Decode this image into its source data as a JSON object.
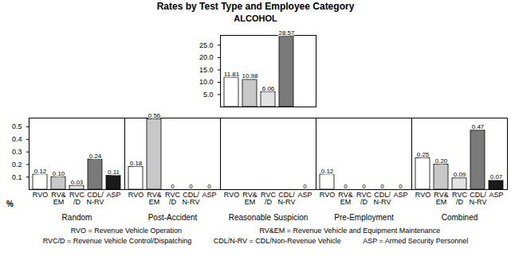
{
  "chart_data": [
    {
      "type": "bar",
      "title": "Rates by Test Type and Employee Category",
      "subtitle": "ALCOHOL",
      "categories": [
        "Random",
        "Post-Accident",
        "Reasonable Suspicion",
        "Pre-Employment",
        "Combined"
      ],
      "series": [
        {
          "name": "RVO",
          "color": "#ffffff",
          "values": [
            null,
            null,
            11.81,
            null,
            null
          ],
          "value_labels": [
            null,
            null,
            "11.81",
            null,
            null
          ]
        },
        {
          "name": "RV&\nEM",
          "color": "#c8c8c8",
          "values": [
            null,
            null,
            10.98,
            null,
            null
          ],
          "value_labels": [
            null,
            null,
            "10.98",
            null,
            null
          ]
        },
        {
          "name": "RVC\n/D",
          "color": "#e2e2e2",
          "values": [
            null,
            null,
            6.06,
            null,
            null
          ],
          "value_labels": [
            null,
            null,
            "6.06",
            null,
            null
          ]
        },
        {
          "name": "CDL/\nN-RV",
          "color": "#7a7a7a",
          "values": [
            null,
            null,
            28.57,
            null,
            null
          ],
          "value_labels": [
            null,
            null,
            "28.57",
            null,
            null
          ]
        },
        {
          "name": "ASP",
          "color": "#1a1a1a",
          "values": [
            null,
            null,
            null,
            null,
            null
          ],
          "value_labels": [
            null,
            null,
            null,
            null,
            null
          ]
        }
      ],
      "ylim": [
        0,
        29
      ],
      "yticks": [
        {
          "value": 5,
          "label": "5.0"
        },
        {
          "value": 10,
          "label": "10.0"
        },
        {
          "value": 15,
          "label": "15.0"
        },
        {
          "value": 20,
          "label": "20.0"
        },
        {
          "value": 25,
          "label": "25.0"
        }
      ],
      "data_labels": true,
      "tick_labels": "y"
    },
    {
      "type": "bar",
      "categories": [
        "Random",
        "Post-Accident",
        "Reasonable Suspicion",
        "Pre-Employment",
        "Combined"
      ],
      "series": [
        {
          "name": "RVO",
          "color": "#ffffff",
          "values": [
            0.12,
            0.18,
            null,
            0.12,
            0.25
          ],
          "value_labels": [
            "0.12",
            "0.18",
            null,
            "0.12",
            "0.25"
          ]
        },
        {
          "name": "RV&\nEM",
          "color": "#c8c8c8",
          "values": [
            0.1,
            0.56,
            null,
            0,
            0.2
          ],
          "value_labels": [
            "0.10",
            "0.56",
            null,
            "0",
            "0.20"
          ]
        },
        {
          "name": "RVC\n/D",
          "color": "#e2e2e2",
          "values": [
            0.03,
            0,
            null,
            0,
            0.09
          ],
          "value_labels": [
            "0.03",
            "0",
            null,
            "0",
            "0.09"
          ]
        },
        {
          "name": "CDL/\nN-RV",
          "color": "#7a7a7a",
          "values": [
            0.24,
            0,
            null,
            0,
            0.47
          ],
          "value_labels": [
            "0.24",
            "0",
            null,
            "0",
            "0.47"
          ]
        },
        {
          "name": "ASP",
          "color": "#1a1a1a",
          "values": [
            0.11,
            0,
            0,
            0,
            0.07
          ],
          "value_labels": [
            "0.11",
            "0",
            "0",
            "0",
            "0.07"
          ]
        }
      ],
      "ylim": [
        0,
        0.57
      ],
      "yticks": [
        0.1,
        0.2,
        0.3,
        0.4,
        0.5
      ],
      "y_label": "%",
      "data_labels": true,
      "notes": [
        [
          "RVO = Revenue Vehicle Operation",
          "RV&EM = Revenue Vehicle and Equipment Maintenance"
        ],
        [
          "RVC/D = Revenue Vehicle Control/Dispatching",
          "CDL/N-RV = CDL/Non-Revenue Vehicle",
          "ASP = Armed Security Personnel"
        ]
      ]
    }
  ]
}
